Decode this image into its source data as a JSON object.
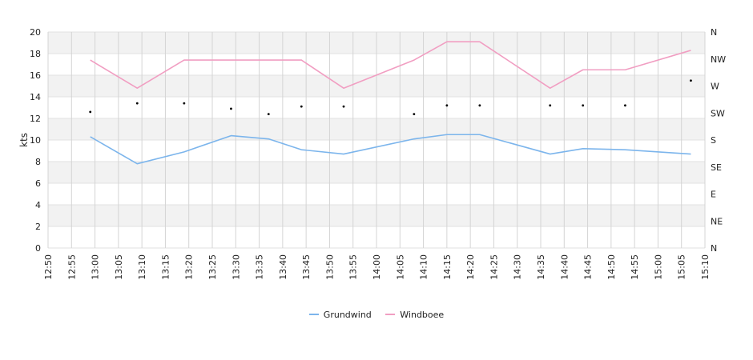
{
  "chart_data": {
    "type": "line",
    "ylabel": "kts",
    "ylim": [
      0,
      20
    ],
    "yticks": [
      "0",
      "2",
      "4",
      "6",
      "8",
      "10",
      "12",
      "14",
      "16",
      "18",
      "20"
    ],
    "xlim": [
      "12:50",
      "15:10"
    ],
    "xticks": [
      "12:50",
      "12:55",
      "13:00",
      "13:05",
      "13:10",
      "13:15",
      "13:20",
      "13:25",
      "13:30",
      "13:35",
      "13:40",
      "13:45",
      "13:50",
      "13:55",
      "14:00",
      "14:05",
      "14:10",
      "14:15",
      "14:20",
      "14:25",
      "14:30",
      "14:35",
      "14:40",
      "14:45",
      "14:50",
      "14:55",
      "15:00",
      "15:05",
      "15:10"
    ],
    "direction_axis": [
      "N",
      "NE",
      "E",
      "SE",
      "S",
      "SW",
      "W",
      "NW",
      "N"
    ],
    "grid": true,
    "legend_position": "bottom",
    "series": [
      {
        "name": "Grundwind",
        "color": "#7cb5ec",
        "x": [
          "12:59",
          "13:09",
          "13:19",
          "13:29",
          "13:37",
          "13:44",
          "13:53",
          "14:08",
          "14:15",
          "14:22",
          "14:37",
          "14:44",
          "14:53",
          "15:07"
        ],
        "values": [
          10.3,
          7.8,
          8.9,
          10.4,
          10.1,
          9.1,
          8.7,
          10.1,
          10.5,
          10.5,
          8.7,
          9.2,
          9.1,
          8.7
        ]
      },
      {
        "name": "Windboee",
        "color": "#f19ec2",
        "x": [
          "12:59",
          "13:09",
          "13:19",
          "13:29",
          "13:37",
          "13:44",
          "13:53",
          "14:08",
          "14:15",
          "14:22",
          "14:37",
          "14:44",
          "14:53",
          "15:07"
        ],
        "values": [
          17.4,
          14.8,
          17.4,
          17.4,
          17.4,
          17.4,
          14.8,
          17.4,
          19.1,
          19.1,
          14.8,
          16.5,
          16.5,
          18.3
        ]
      }
    ],
    "direction_points": {
      "x": [
        "12:59",
        "13:09",
        "13:19",
        "13:29",
        "13:37",
        "13:44",
        "13:53",
        "14:08",
        "14:15",
        "14:22",
        "14:37",
        "14:44",
        "14:53",
        "15:07"
      ],
      "values": [
        12.6,
        13.4,
        13.4,
        12.9,
        12.4,
        13.1,
        13.1,
        12.4,
        13.2,
        13.2,
        13.2,
        13.2,
        13.2,
        15.5
      ]
    }
  }
}
